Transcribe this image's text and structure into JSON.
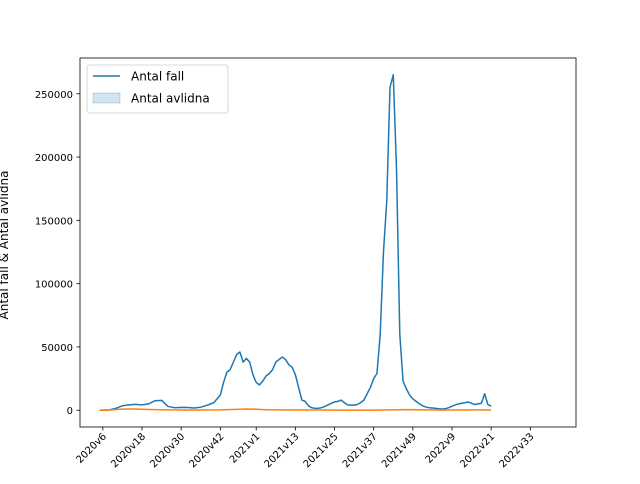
{
  "chart_data": {
    "type": "line",
    "title": "",
    "xlabel": "",
    "ylabel": "Antal fall & Antal avlidna",
    "ylim": [
      -13250,
      278250
    ],
    "yticks": [
      0,
      50000,
      100000,
      150000,
      200000,
      250000
    ],
    "ytick_labels": [
      "0",
      "50000",
      "100000",
      "150000",
      "200000",
      "250000"
    ],
    "xticks": [
      {
        "label": "2020v6",
        "x": 6
      },
      {
        "label": "2020v18",
        "x": 18
      },
      {
        "label": "2020v30",
        "x": 30
      },
      {
        "label": "2020v42",
        "x": 42
      },
      {
        "label": "2021v1",
        "x": 53
      },
      {
        "label": "2021v13",
        "x": 65
      },
      {
        "label": "2021v25",
        "x": 77
      },
      {
        "label": "2021v37",
        "x": 89
      },
      {
        "label": "2021v49",
        "x": 101
      },
      {
        "label": "2022v9",
        "x": 113
      },
      {
        "label": "2022v21",
        "x": 125
      },
      {
        "label": "2022v33",
        "x": 137
      }
    ],
    "xlim": [
      -1,
      151
    ],
    "legend": {
      "placement": "top-left"
    },
    "series": [
      {
        "name": "Antal fall",
        "color": "#1f77b4",
        "legend_style": "line",
        "points": [
          [
            5,
            0
          ],
          [
            8,
            300
          ],
          [
            10,
            1500
          ],
          [
            12,
            3500
          ],
          [
            14,
            4200
          ],
          [
            16,
            4600
          ],
          [
            18,
            4200
          ],
          [
            20,
            5000
          ],
          [
            22,
            7500
          ],
          [
            24,
            7800
          ],
          [
            26,
            3000
          ],
          [
            28,
            2000
          ],
          [
            30,
            2300
          ],
          [
            32,
            2200
          ],
          [
            34,
            1800
          ],
          [
            36,
            2400
          ],
          [
            38,
            4000
          ],
          [
            40,
            6000
          ],
          [
            42,
            12000
          ],
          [
            43,
            22000
          ],
          [
            44,
            30000
          ],
          [
            45,
            32000
          ],
          [
            46,
            38000
          ],
          [
            47,
            44000
          ],
          [
            48,
            46000
          ],
          [
            49,
            38000
          ],
          [
            50,
            41000
          ],
          [
            51,
            38000
          ],
          [
            52,
            28000
          ],
          [
            53,
            22000
          ],
          [
            54,
            20000
          ],
          [
            55,
            23000
          ],
          [
            56,
            27000
          ],
          [
            57,
            29000
          ],
          [
            58,
            32000
          ],
          [
            59,
            38000
          ],
          [
            60,
            40000
          ],
          [
            61,
            42000
          ],
          [
            62,
            40000
          ],
          [
            63,
            36000
          ],
          [
            64,
            34000
          ],
          [
            65,
            28000
          ],
          [
            66,
            18000
          ],
          [
            67,
            8000
          ],
          [
            68,
            7000
          ],
          [
            69,
            3500
          ],
          [
            70,
            2000
          ],
          [
            71,
            1500
          ],
          [
            72,
            1500
          ],
          [
            73,
            2000
          ],
          [
            74,
            3000
          ],
          [
            75,
            4200
          ],
          [
            76,
            5500
          ],
          [
            77,
            6500
          ],
          [
            78,
            7000
          ],
          [
            79,
            8000
          ],
          [
            80,
            6000
          ],
          [
            81,
            4200
          ],
          [
            82,
            4000
          ],
          [
            83,
            4000
          ],
          [
            84,
            4500
          ],
          [
            85,
            6000
          ],
          [
            86,
            8000
          ],
          [
            87,
            13000
          ],
          [
            88,
            18000
          ],
          [
            89,
            25000
          ],
          [
            90,
            29000
          ],
          [
            91,
            60000
          ],
          [
            92,
            125000
          ],
          [
            93,
            165000
          ],
          [
            94,
            255000
          ],
          [
            95,
            265000
          ],
          [
            96,
            190000
          ],
          [
            97,
            60000
          ],
          [
            98,
            23000
          ],
          [
            99,
            17000
          ],
          [
            100,
            12000
          ],
          [
            101,
            9000
          ],
          [
            102,
            7000
          ],
          [
            103,
            5000
          ],
          [
            104,
            3500
          ],
          [
            105,
            2500
          ],
          [
            106,
            2000
          ],
          [
            107,
            1800
          ],
          [
            108,
            1500
          ],
          [
            109,
            1200
          ],
          [
            110,
            1000
          ],
          [
            111,
            1200
          ],
          [
            112,
            2000
          ],
          [
            113,
            3200
          ],
          [
            114,
            4200
          ],
          [
            115,
            5000
          ],
          [
            116,
            5500
          ],
          [
            117,
            6000
          ],
          [
            118,
            6500
          ],
          [
            119,
            5500
          ],
          [
            120,
            4500
          ],
          [
            121,
            5000
          ],
          [
            122,
            5500
          ],
          [
            123,
            13000
          ],
          [
            124,
            4500
          ],
          [
            125,
            3200
          ]
        ]
      },
      {
        "name": "",
        "color": "#ff7f0e",
        "legend_style": "none",
        "points": [
          [
            5,
            0
          ],
          [
            8,
            200
          ],
          [
            12,
            900
          ],
          [
            16,
            1000
          ],
          [
            20,
            600
          ],
          [
            24,
            400
          ],
          [
            30,
            200
          ],
          [
            36,
            200
          ],
          [
            42,
            300
          ],
          [
            48,
            800
          ],
          [
            50,
            1000
          ],
          [
            52,
            900
          ],
          [
            56,
            400
          ],
          [
            64,
            200
          ],
          [
            72,
            150
          ],
          [
            80,
            100
          ],
          [
            90,
            100
          ],
          [
            96,
            400
          ],
          [
            100,
            500
          ],
          [
            104,
            300
          ],
          [
            110,
            200
          ],
          [
            116,
            200
          ],
          [
            120,
            300
          ],
          [
            125,
            200
          ]
        ]
      },
      {
        "name": "Antal avlidna",
        "color": "#1f77b4",
        "legend_style": "patch",
        "points": []
      }
    ]
  }
}
